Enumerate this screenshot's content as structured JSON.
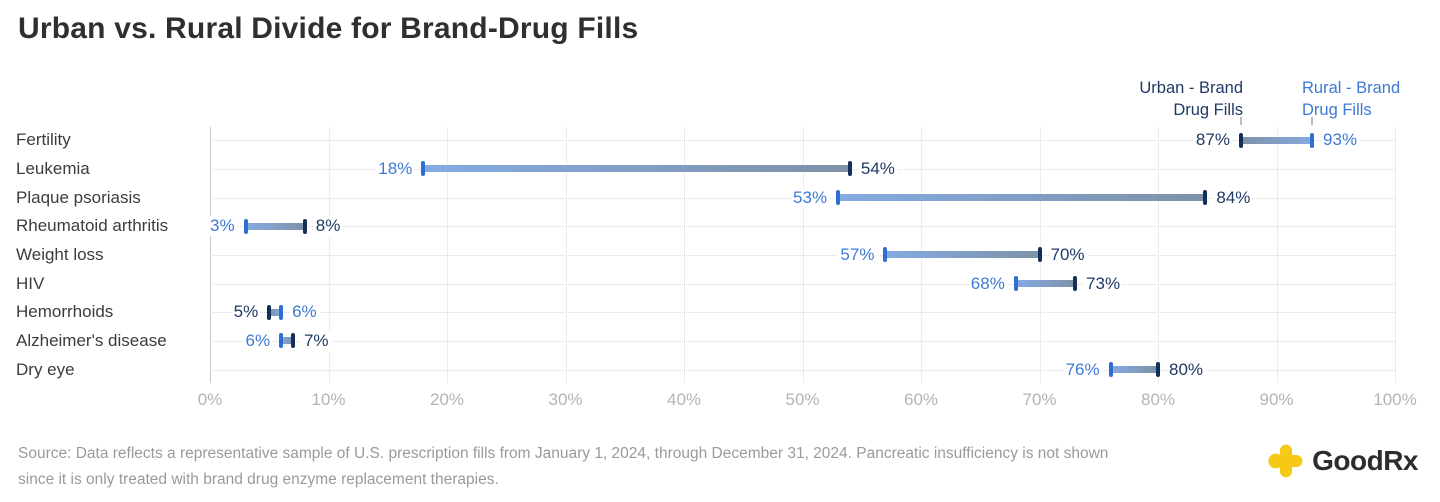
{
  "title": "Urban vs. Rural Divide for Brand-Drug Fills",
  "legend": {
    "urban_lines": [
      "Urban - Brand",
      "Drug Fills"
    ],
    "rural_lines": [
      "Rural - Brand",
      "Drug Fills"
    ]
  },
  "colors": {
    "urban_text": "#1F3A64",
    "urban_cap": "#143059",
    "rural_text": "#3D7AD6",
    "rural_cap": "#2E6FD1",
    "bar_urban_end": "#7E91A7",
    "bar_rural_end": "#84ABE3",
    "gridline": "#ececec",
    "zero_line": "#c9c9c9",
    "logo_yellow": "#F5C915"
  },
  "chart_data": {
    "type": "dumbbell-bar",
    "title": "Urban vs. Rural Divide for Brand-Drug Fills",
    "xlabel": "",
    "ylabel": "",
    "xlim": [
      0,
      100
    ],
    "x_ticks": [
      "0%",
      "10%",
      "20%",
      "30%",
      "40%",
      "50%",
      "60%",
      "70%",
      "80%",
      "90%",
      "100%"
    ],
    "grid": "vertical-light-plus-dotted-row-guides",
    "legend_position": "top-right",
    "value_suffix": "%",
    "categories": [
      "Fertility",
      "Leukemia",
      "Plaque psoriasis",
      "Rheumatoid arthritis",
      "Weight loss",
      "HIV",
      "Hemorrhoids",
      "Alzheimer's disease",
      "Dry eye"
    ],
    "series": [
      {
        "name": "Urban - Brand Drug Fills",
        "values": [
          87,
          54,
          84,
          8,
          70,
          73,
          5,
          7,
          80
        ]
      },
      {
        "name": "Rural - Brand Drug Fills",
        "values": [
          93,
          18,
          53,
          3,
          57,
          68,
          6,
          6,
          76
        ]
      }
    ]
  },
  "source": {
    "line1": "Source: Data reflects a representative sample of U.S. prescription fills from January 1, 2024, through December 31, 2024. Pancreatic insufficiency is not shown",
    "line2": "since it is only treated with brand drug enzyme replacement therapies."
  },
  "logo": {
    "text": "GoodRx"
  }
}
